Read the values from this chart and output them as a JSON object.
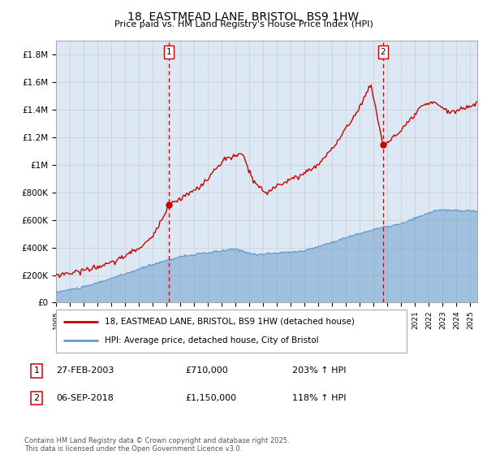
{
  "title": "18, EASTMEAD LANE, BRISTOL, BS9 1HW",
  "subtitle": "Price paid vs. HM Land Registry's House Price Index (HPI)",
  "legend_line1": "18, EASTMEAD LANE, BRISTOL, BS9 1HW (detached house)",
  "legend_line2": "HPI: Average price, detached house, City of Bristol",
  "annotation1_label": "1",
  "annotation1_date": "27-FEB-2003",
  "annotation1_price": "£710,000",
  "annotation1_hpi": "203% ↑ HPI",
  "annotation2_label": "2",
  "annotation2_date": "06-SEP-2018",
  "annotation2_price": "£1,150,000",
  "annotation2_hpi": "118% ↑ HPI",
  "footnote": "Contains HM Land Registry data © Crown copyright and database right 2025.\nThis data is licensed under the Open Government Licence v3.0.",
  "red_color": "#cc0000",
  "blue_color": "#6699cc",
  "blue_fill": "#dce9f5",
  "background_color": "#ffffff",
  "grid_color": "#cccccc",
  "ylim": [
    0,
    1900000
  ],
  "yticks": [
    0,
    200000,
    400000,
    600000,
    800000,
    1000000,
    1200000,
    1400000,
    1600000,
    1800000
  ],
  "ytick_labels": [
    "£0",
    "£200K",
    "£400K",
    "£600K",
    "£800K",
    "£1M",
    "£1.2M",
    "£1.4M",
    "£1.6M",
    "£1.8M"
  ],
  "marker1_x": 2003.15,
  "marker1_y": 710000,
  "marker2_x": 2018.68,
  "marker2_y": 1150000,
  "vline1_x": 2003.15,
  "vline2_x": 2018.68,
  "xmin": 1995.0,
  "xmax": 2025.5
}
